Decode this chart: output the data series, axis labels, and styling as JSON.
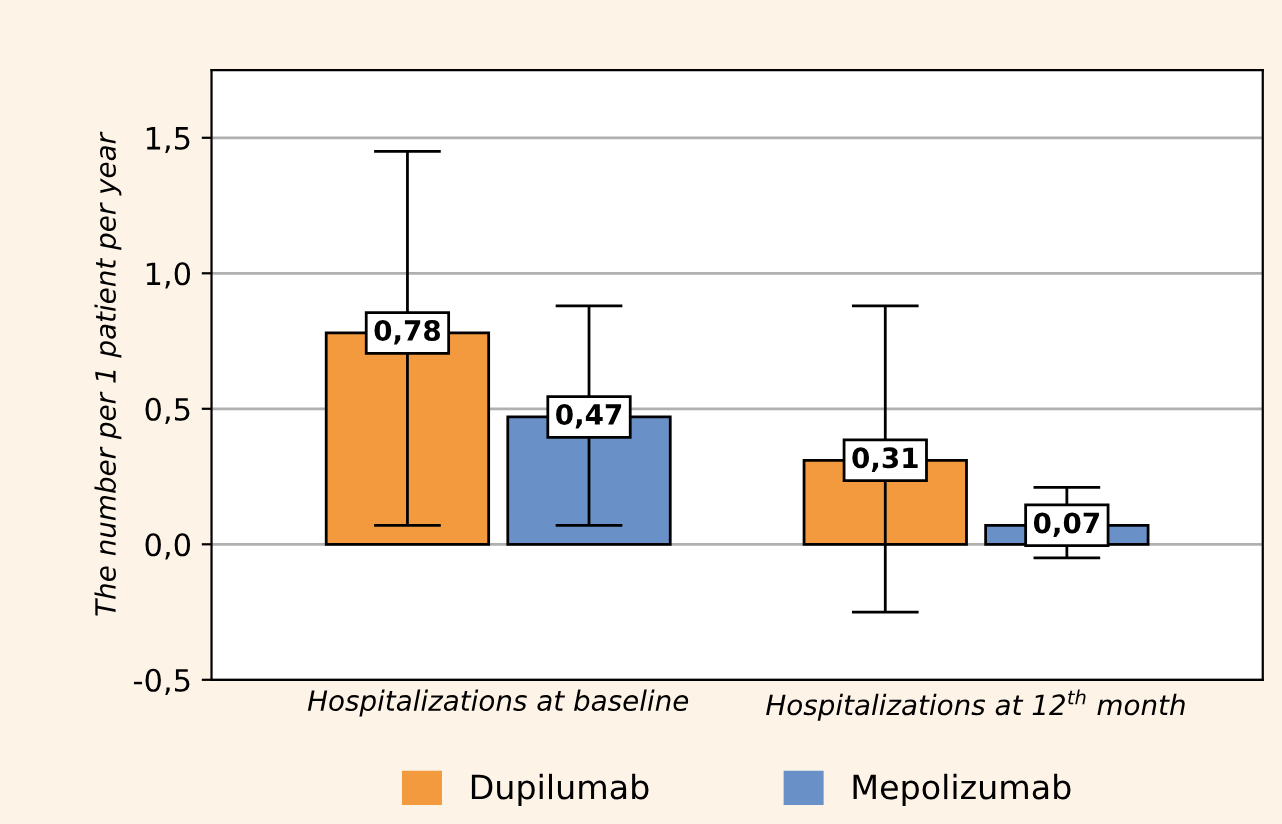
{
  "chart_data": {
    "type": "bar",
    "ylabel": "The number per 1 patient per year",
    "categories": [
      "Hospitalizations at baseline",
      "Hospitalizations at 12$^{th}$ month"
    ],
    "series": [
      {
        "name": "Dupilumab",
        "color": "#f39a3e",
        "values": [
          0.78,
          0.31
        ],
        "value_labels": [
          "0,78",
          "0,31"
        ],
        "errors": [
          [
            0.07,
            1.45
          ],
          [
            -0.25,
            0.88
          ]
        ]
      },
      {
        "name": "Mepolizumab",
        "color": "#6a90c8",
        "values": [
          0.47,
          0.07
        ],
        "value_labels": [
          "0,47",
          "0,07"
        ],
        "errors": [
          [
            0.07,
            0.88
          ],
          [
            -0.05,
            0.21
          ]
        ]
      }
    ],
    "ylim": [
      -0.5,
      1.75
    ],
    "yticks": [
      {
        "value": -0.5,
        "label": "-0,5"
      },
      {
        "value": 0,
        "label": "0,0"
      },
      {
        "value": 0.5,
        "label": "0,5"
      },
      {
        "value": 1.0,
        "label": "1,0"
      },
      {
        "value": 1.5,
        "label": "1,5"
      }
    ],
    "grid": "y",
    "legend": "bottom"
  }
}
